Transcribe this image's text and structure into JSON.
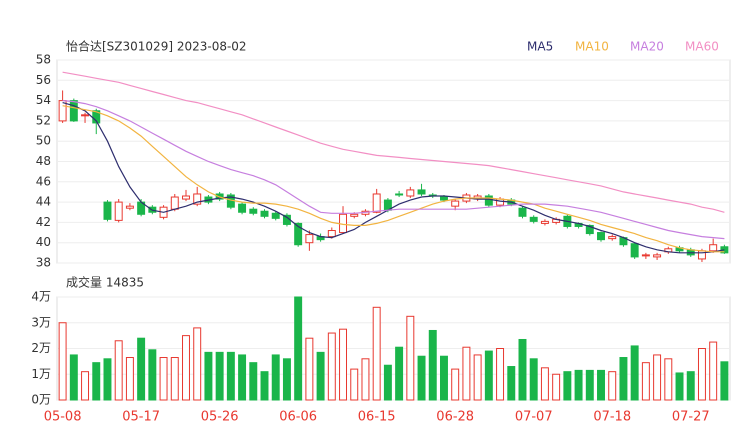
{
  "chart_data": {
    "type": "candlestick",
    "title": "怡合达[SZ301029] 2023-08-02",
    "categories": [
      "05-08",
      null,
      null,
      null,
      null,
      null,
      null,
      "05-17",
      null,
      null,
      null,
      null,
      null,
      null,
      "05-26",
      null,
      null,
      null,
      null,
      null,
      null,
      "06-06",
      null,
      null,
      null,
      null,
      null,
      null,
      "06-15",
      null,
      null,
      null,
      null,
      null,
      null,
      "06-28",
      null,
      null,
      null,
      null,
      null,
      null,
      "07-07",
      null,
      null,
      null,
      null,
      null,
      null,
      "07-18",
      null,
      null,
      null,
      null,
      null,
      null,
      "07-27",
      null,
      null,
      null
    ],
    "open": [
      52.0,
      54.0,
      52.5,
      53.0,
      44.0,
      42.2,
      43.4,
      44.0,
      43.5,
      42.5,
      43.3,
      44.3,
      43.8,
      44.5,
      44.8,
      44.7,
      43.8,
      43.3,
      43.1,
      42.9,
      42.7,
      41.9,
      40.0,
      40.6,
      40.6,
      41.0,
      42.6,
      42.8,
      43.0,
      44.2,
      44.8,
      44.6,
      45.2,
      44.7,
      44.5,
      43.6,
      44.1,
      44.3,
      44.6,
      43.7,
      44.2,
      43.4,
      42.5,
      41.9,
      42.0,
      42.6,
      41.9,
      41.7,
      41.0,
      40.4,
      40.5,
      39.9,
      38.7,
      38.6,
      39.1,
      39.5,
      39.3,
      38.4,
      39.2,
      39.6
    ],
    "high": [
      55.0,
      54.2,
      52.8,
      53.2,
      44.2,
      44.3,
      43.9,
      44.3,
      43.7,
      43.7,
      44.8,
      45.2,
      45.5,
      44.7,
      45.0,
      44.9,
      44.0,
      43.5,
      43.3,
      43.1,
      42.9,
      42.0,
      41.2,
      40.9,
      41.5,
      43.6,
      43.0,
      43.3,
      45.3,
      44.4,
      45.1,
      45.5,
      45.8,
      44.9,
      44.7,
      44.3,
      44.9,
      44.8,
      44.8,
      44.5,
      44.4,
      43.6,
      42.7,
      42.3,
      42.5,
      42.8,
      42.0,
      41.8,
      41.1,
      40.8,
      40.6,
      40.0,
      39.0,
      39.0,
      39.6,
      39.7,
      39.5,
      39.4,
      40.4,
      39.8
    ],
    "low": [
      51.8,
      51.9,
      51.8,
      50.7,
      42.1,
      42.0,
      43.2,
      42.6,
      42.8,
      42.3,
      43.1,
      44.1,
      43.6,
      43.8,
      44.1,
      43.3,
      42.8,
      42.7,
      42.4,
      42.2,
      41.6,
      39.6,
      39.2,
      40.1,
      40.4,
      40.9,
      42.4,
      42.6,
      42.9,
      43.0,
      44.5,
      44.4,
      44.6,
      44.4,
      44.0,
      43.2,
      43.9,
      44.1,
      43.5,
      43.5,
      43.6,
      42.4,
      41.9,
      41.7,
      41.8,
      41.4,
      41.4,
      40.7,
      40.1,
      40.2,
      39.6,
      38.4,
      38.4,
      38.3,
      38.9,
      39.0,
      38.6,
      38.1,
      39.0,
      38.9
    ],
    "close": [
      54.0,
      52.0,
      52.6,
      51.8,
      42.3,
      44.0,
      43.6,
      42.8,
      43.0,
      43.5,
      44.5,
      44.6,
      44.8,
      44.0,
      44.3,
      43.5,
      43.0,
      42.9,
      42.6,
      42.4,
      41.8,
      39.8,
      40.8,
      40.3,
      41.2,
      42.8,
      42.8,
      43.1,
      44.8,
      43.2,
      44.7,
      45.2,
      44.8,
      44.6,
      44.2,
      44.1,
      44.7,
      44.6,
      43.7,
      44.3,
      43.8,
      42.6,
      42.1,
      42.1,
      42.3,
      41.6,
      41.6,
      40.9,
      40.3,
      40.6,
      39.8,
      38.6,
      38.8,
      38.8,
      39.4,
      39.2,
      38.8,
      39.2,
      39.8,
      39.0
    ],
    "series": [
      {
        "name": "MA5",
        "color": "#2e2e6e",
        "values": [
          53.8,
          53.5,
          53.0,
          52.0,
          50.0,
          47.5,
          45.5,
          44.0,
          43.2,
          43.0,
          43.3,
          43.6,
          44.0,
          44.2,
          44.4,
          44.5,
          44.3,
          44.0,
          43.6,
          43.1,
          42.5,
          41.6,
          41.0,
          40.6,
          40.5,
          40.9,
          41.3,
          42.0,
          42.6,
          43.2,
          43.8,
          44.2,
          44.5,
          44.6,
          44.6,
          44.5,
          44.4,
          44.3,
          44.3,
          44.1,
          44.0,
          43.6,
          43.2,
          42.7,
          42.3,
          42.1,
          41.9,
          41.6,
          41.2,
          40.9,
          40.5,
          40.0,
          39.6,
          39.3,
          39.1,
          39.0,
          39.0,
          39.0,
          39.1,
          39.3
        ]
      },
      {
        "name": "MA10",
        "color": "#f2b441",
        "values": [
          53.5,
          53.3,
          53.1,
          52.9,
          52.5,
          52.0,
          51.3,
          50.5,
          49.5,
          48.5,
          47.5,
          46.5,
          45.7,
          45.0,
          44.5,
          44.2,
          44.0,
          43.9,
          43.9,
          43.8,
          43.6,
          43.3,
          42.9,
          42.4,
          42.0,
          41.8,
          41.7,
          41.7,
          41.9,
          42.2,
          42.6,
          43.0,
          43.4,
          43.8,
          44.1,
          44.3,
          44.4,
          44.4,
          44.4,
          44.3,
          44.2,
          44.0,
          43.8,
          43.4,
          43.1,
          42.8,
          42.5,
          42.2,
          41.8,
          41.5,
          41.2,
          40.9,
          40.5,
          40.2,
          39.8,
          39.5,
          39.3,
          39.2,
          39.1,
          39.1
        ]
      },
      {
        "name": "MA20",
        "color": "#c67fdf",
        "values": [
          54.0,
          53.9,
          53.7,
          53.4,
          53.0,
          52.5,
          52.0,
          51.4,
          50.8,
          50.2,
          49.6,
          49.0,
          48.5,
          48.0,
          47.6,
          47.2,
          46.9,
          46.6,
          46.2,
          45.7,
          45.0,
          44.3,
          43.6,
          43.0,
          42.9,
          42.9,
          42.9,
          43.0,
          43.1,
          43.2,
          43.3,
          43.3,
          43.3,
          43.3,
          43.3,
          43.3,
          43.3,
          43.4,
          43.5,
          43.6,
          43.7,
          43.8,
          43.8,
          43.8,
          43.7,
          43.6,
          43.4,
          43.2,
          43.0,
          42.7,
          42.4,
          42.1,
          41.8,
          41.5,
          41.2,
          41.0,
          40.8,
          40.6,
          40.5,
          40.4
        ]
      },
      {
        "name": "MA60",
        "color": "#f28fc4",
        "values": [
          56.8,
          56.6,
          56.4,
          56.2,
          56.0,
          55.8,
          55.5,
          55.2,
          54.9,
          54.6,
          54.3,
          54.0,
          53.8,
          53.5,
          53.2,
          52.9,
          52.6,
          52.2,
          51.8,
          51.4,
          51.0,
          50.6,
          50.2,
          49.8,
          49.5,
          49.2,
          49.0,
          48.8,
          48.6,
          48.5,
          48.4,
          48.3,
          48.2,
          48.1,
          48.0,
          47.9,
          47.8,
          47.7,
          47.6,
          47.4,
          47.2,
          47.0,
          46.8,
          46.6,
          46.4,
          46.2,
          46.0,
          45.8,
          45.6,
          45.3,
          45.0,
          44.8,
          44.6,
          44.4,
          44.2,
          44.0,
          43.8,
          43.5,
          43.3,
          43.0
        ]
      }
    ],
    "ylim": [
      38,
      58
    ],
    "yticks": [
      38,
      40,
      42,
      44,
      46,
      48,
      50,
      52,
      54,
      56,
      58
    ],
    "volume_label": "成交量 14835",
    "volume": [
      3.0,
      1.75,
      1.1,
      1.45,
      1.6,
      2.3,
      1.65,
      2.4,
      1.95,
      1.65,
      1.65,
      2.5,
      2.8,
      1.85,
      1.85,
      1.85,
      1.75,
      1.45,
      1.1,
      1.75,
      1.6,
      4.0,
      2.4,
      1.85,
      2.6,
      2.75,
      1.2,
      1.6,
      3.6,
      1.35,
      2.05,
      3.25,
      1.7,
      2.7,
      1.7,
      1.2,
      2.05,
      1.75,
      1.9,
      2.0,
      1.3,
      2.35,
      1.6,
      1.25,
      1.0,
      1.1,
      1.15,
      1.15,
      1.15,
      1.1,
      1.65,
      2.1,
      1.45,
      1.75,
      1.6,
      1.05,
      1.1,
      2.0,
      2.25,
      1.4835
    ],
    "vlim": [
      0,
      4
    ],
    "vticks": [
      {
        "value": 0,
        "label": "0万"
      },
      {
        "value": 1,
        "label": "1万"
      },
      {
        "value": 2,
        "label": "2万"
      },
      {
        "value": 3,
        "label": "3万"
      },
      {
        "value": 4,
        "label": "4万"
      }
    ],
    "up_color": "#e8382f",
    "down_color": "#1ab54a",
    "grid": true
  }
}
